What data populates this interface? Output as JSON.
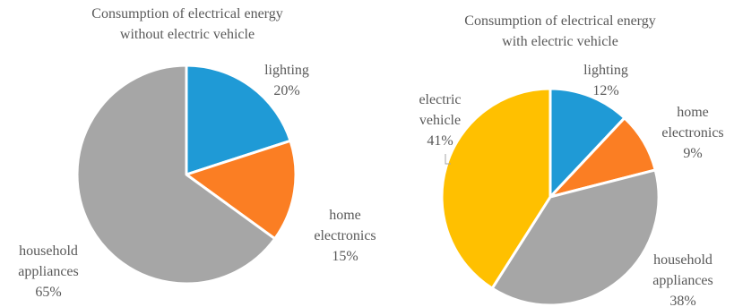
{
  "colors": {
    "lighting": "#1f9ad6",
    "home_electronics": "#fb7e23",
    "household_appliances": "#a6a6a6",
    "electric_vehicle": "#ffc000",
    "text": "#595959",
    "leader": "#a6a6a6"
  },
  "chart_data": [
    {
      "type": "pie",
      "title": [
        "Consumption of electrical energy",
        "without electric vehicle"
      ],
      "slices": [
        {
          "id": "lighting",
          "label": [
            "lighting"
          ],
          "value": 20,
          "value_label": "20%"
        },
        {
          "id": "home_electronics",
          "label": [
            "home",
            "electronics"
          ],
          "value": 15,
          "value_label": "15%"
        },
        {
          "id": "household_appliances",
          "label": [
            "household",
            "appliances"
          ],
          "value": 65,
          "value_label": "65%"
        }
      ]
    },
    {
      "type": "pie",
      "title": [
        "Consumption of electrical energy",
        "with electric vehicle"
      ],
      "slices": [
        {
          "id": "lighting",
          "label": [
            "lighting"
          ],
          "value": 12,
          "value_label": "12%"
        },
        {
          "id": "home_electronics",
          "label": [
            "home",
            "electronics"
          ],
          "value": 9,
          "value_label": "9%"
        },
        {
          "id": "household_appliances",
          "label": [
            "household",
            "appliances"
          ],
          "value": 38,
          "value_label": "38%"
        },
        {
          "id": "electric_vehicle",
          "label": [
            "electric",
            "vehicle"
          ],
          "value": 41,
          "value_label": "41%"
        }
      ]
    }
  ]
}
